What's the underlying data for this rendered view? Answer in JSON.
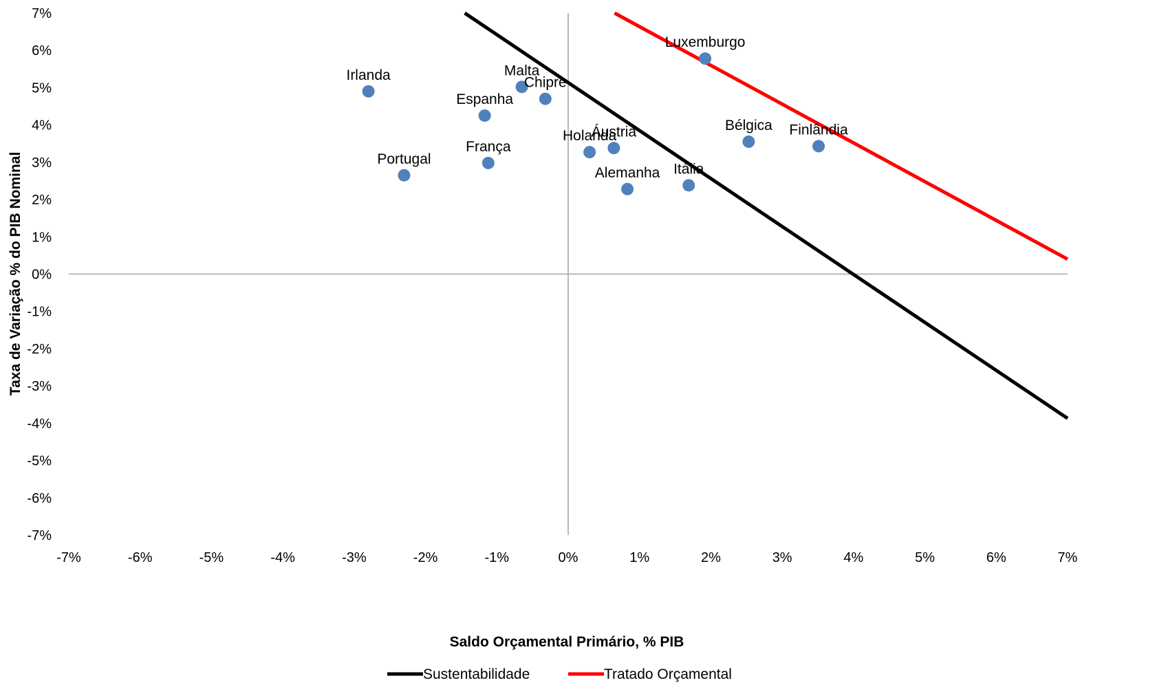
{
  "chart_data": {
    "type": "scatter",
    "xlabel": "Saldo Orçamental Primário, % PIB",
    "ylabel": "Taxa de Variação % do PIB Nominal",
    "xlim": [
      -7,
      7
    ],
    "ylim": [
      -7,
      7
    ],
    "x_ticks": [
      "-7%",
      "-6%",
      "-5%",
      "-4%",
      "-3%",
      "-2%",
      "-1%",
      "0%",
      "1%",
      "2%",
      "3%",
      "4%",
      "5%",
      "6%",
      "7%"
    ],
    "y_ticks": [
      "7%",
      "6%",
      "5%",
      "4%",
      "3%",
      "2%",
      "1%",
      "0%",
      "-1%",
      "-2%",
      "-3%",
      "-4%",
      "-5%",
      "-6%",
      "-7%"
    ],
    "point_color": "#4f81bd",
    "points": [
      {
        "label": "Irlanda",
        "x": -2.8,
        "y": 4.9
      },
      {
        "label": "Portugal",
        "x": -2.3,
        "y": 2.65
      },
      {
        "label": "Espanha",
        "x": -1.17,
        "y": 4.25
      },
      {
        "label": "França",
        "x": -1.12,
        "y": 2.98
      },
      {
        "label": "Malta",
        "x": -0.65,
        "y": 5.02
      },
      {
        "label": "Chipre",
        "x": -0.32,
        "y": 4.7
      },
      {
        "label": "Holanda",
        "x": 0.3,
        "y": 3.27
      },
      {
        "label": "Áustria",
        "x": 0.64,
        "y": 3.38
      },
      {
        "label": "Alemanha",
        "x": 0.83,
        "y": 2.28
      },
      {
        "label": "Itália",
        "x": 1.69,
        "y": 2.38
      },
      {
        "label": "Luxemburgo",
        "x": 1.92,
        "y": 5.78
      },
      {
        "label": "Bélgica",
        "x": 2.53,
        "y": 3.55
      },
      {
        "label": "Finlândia",
        "x": 3.51,
        "y": 3.43
      }
    ],
    "series": [
      {
        "name": "Sustentabilidade",
        "color": "#000000",
        "x": [
          -1.45,
          7.0
        ],
        "y": [
          7.0,
          -3.87
        ]
      },
      {
        "name": "Tratado Orçamental",
        "color": "#ff0000",
        "x": [
          0.65,
          7.0
        ],
        "y": [
          7.0,
          0.4
        ]
      }
    ],
    "grid": false,
    "legend_position": "bottom"
  }
}
